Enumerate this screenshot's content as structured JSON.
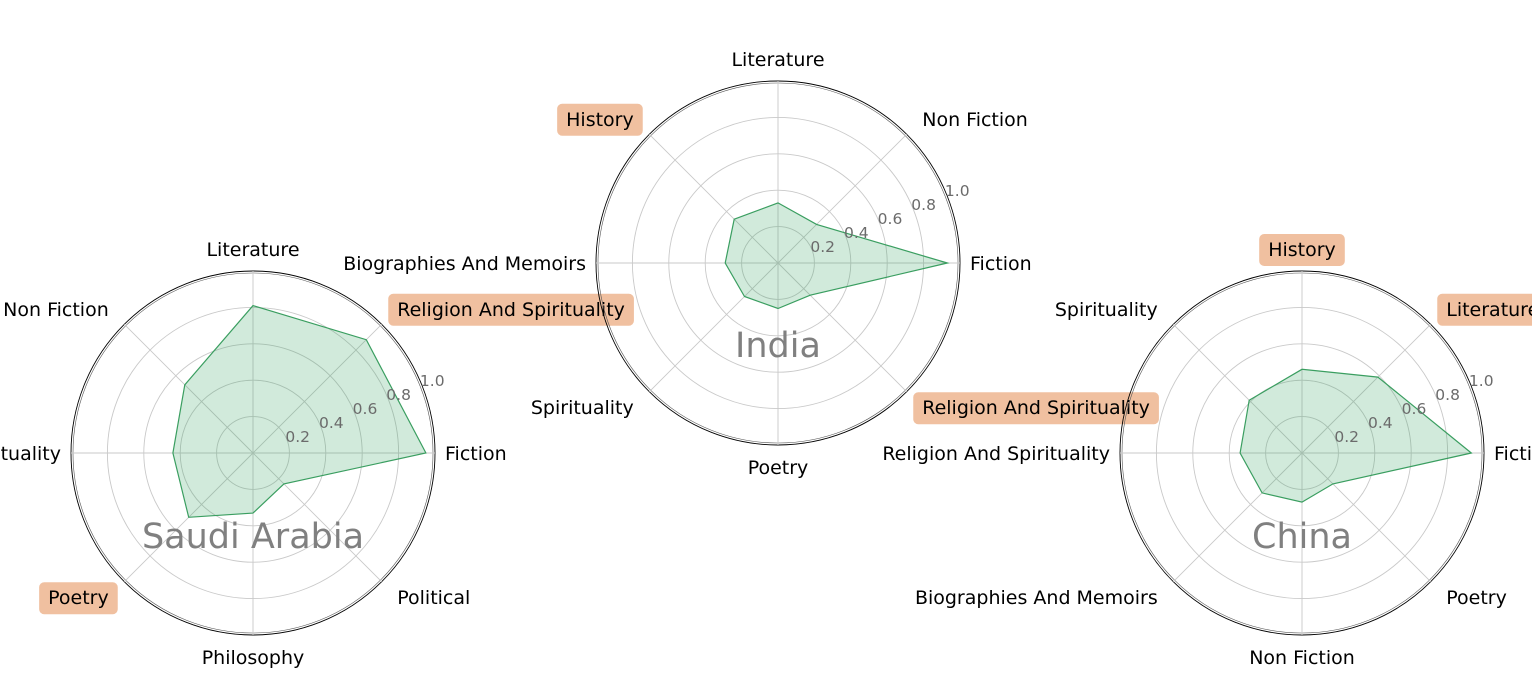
{
  "colors": {
    "fill": "#2e9e5b",
    "fill_opacity": 0.22,
    "stroke": "#3a9e60",
    "highlight_box": "#f0c0a0",
    "highlight_text": "#7a4a2a",
    "country_label": "#808080"
  },
  "chart_data": [
    {
      "type": "radar",
      "title": "Saudi Arabia",
      "rlim": [
        0,
        1.0
      ],
      "rticks": [
        "0.2",
        "0.4",
        "0.6",
        "0.8",
        "1.0"
      ],
      "grid": true,
      "categories": [
        "Fiction",
        "Religion And Spirituality",
        "Literature",
        "Non Fiction",
        "Spirituality",
        "Poetry",
        "Philosophy",
        "Political"
      ],
      "highlighted": [
        "Religion And Spirituality",
        "Poetry"
      ],
      "values": [
        0.95,
        0.88,
        0.81,
        0.53,
        0.44,
        0.5,
        0.33,
        0.24
      ]
    },
    {
      "type": "radar",
      "title": "India",
      "rlim": [
        0,
        1.0
      ],
      "rticks": [
        "0.2",
        "0.4",
        "0.6",
        "0.8",
        "1.0"
      ],
      "grid": true,
      "categories": [
        "Fiction",
        "Non Fiction",
        "Literature",
        "History",
        "Biographies And Memoirs",
        "Spirituality",
        "Poetry",
        "Religion And Spirituality"
      ],
      "highlighted": [
        "History",
        "Religion And Spirituality"
      ],
      "values": [
        0.93,
        0.3,
        0.33,
        0.34,
        0.29,
        0.26,
        0.25,
        0.25
      ]
    },
    {
      "type": "radar",
      "title": "China",
      "rlim": [
        0,
        1.0
      ],
      "rticks": [
        "0.2",
        "0.4",
        "0.6",
        "0.8",
        "1.0"
      ],
      "grid": true,
      "categories": [
        "Fiction",
        "Literature",
        "History",
        "Spirituality",
        "Religion And Spirituality",
        "Biographies And Memoirs",
        "Non Fiction",
        "Poetry"
      ],
      "highlighted": [
        "History",
        "Literature"
      ],
      "values": [
        0.93,
        0.59,
        0.46,
        0.41,
        0.34,
        0.31,
        0.27,
        0.24
      ]
    }
  ]
}
